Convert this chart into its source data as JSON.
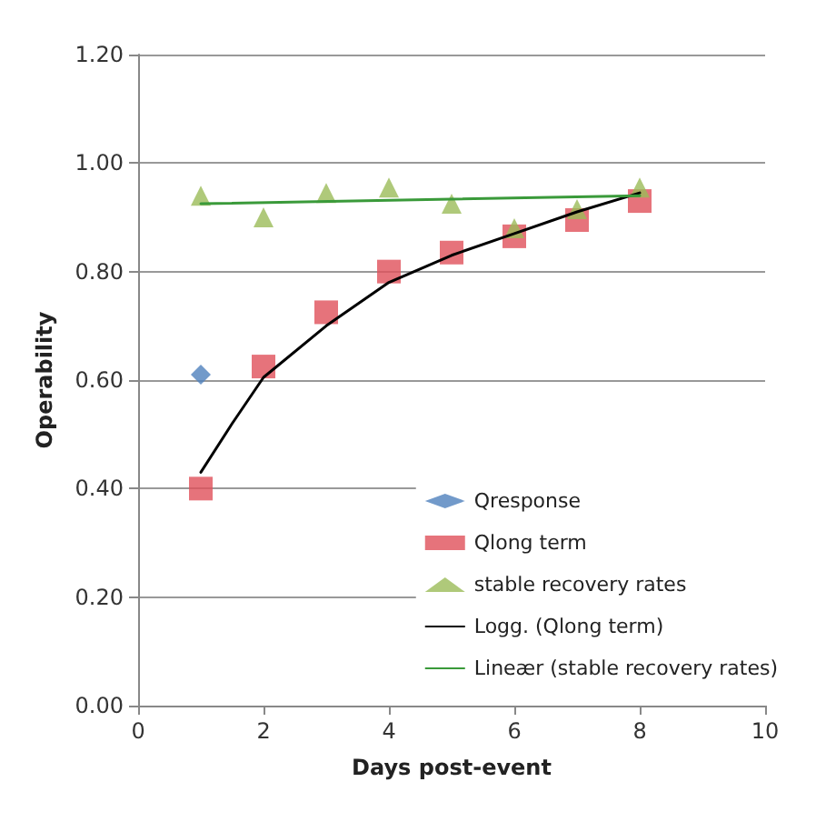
{
  "chart_data": {
    "type": "scatter",
    "xlabel": "Days post-event",
    "ylabel": "Operability",
    "xlim": [
      0,
      10
    ],
    "xticks": [
      0,
      2,
      4,
      6,
      8,
      10
    ],
    "ylim": [
      0,
      1.2
    ],
    "yticks": [
      {
        "value": 0,
        "label": "0.00"
      },
      {
        "value": 0.2,
        "label": "0.20"
      },
      {
        "value": 0.4,
        "label": "0.40"
      },
      {
        "value": 0.6,
        "label": "0.60"
      },
      {
        "value": 0.8,
        "label": "0.80"
      },
      {
        "value": 1,
        "label": "1.00"
      },
      {
        "value": 1.2,
        "label": "1.20"
      }
    ],
    "grid": "y",
    "legend": "bottom right",
    "series": [
      {
        "name": "Qresponse",
        "marker": "diamond",
        "color": "#4f81bd",
        "x": [
          1
        ],
        "values": [
          0.61
        ]
      },
      {
        "name": "Qlong term",
        "marker": "square",
        "color": "#e0505a",
        "x": [
          1,
          2,
          3,
          4,
          5,
          6,
          7,
          8
        ],
        "values": [
          0.4,
          0.625,
          0.725,
          0.8,
          0.835,
          0.865,
          0.895,
          0.93
        ]
      },
      {
        "name": "stable recovery rates",
        "marker": "triangle",
        "color": "#9bbb59",
        "x": [
          1,
          2,
          3,
          4,
          5,
          6,
          7,
          8
        ],
        "values": [
          0.94,
          0.9,
          0.945,
          0.955,
          0.925,
          0.88,
          0.915,
          0.955
        ]
      },
      {
        "name": "Logg. (Qlong term)",
        "type": "line",
        "marker": "none",
        "color": "#000000",
        "x": [
          1,
          1.5,
          2,
          3,
          4,
          5,
          6,
          7,
          8
        ],
        "values": [
          0.43,
          0.52,
          0.605,
          0.7,
          0.78,
          0.83,
          0.87,
          0.91,
          0.945
        ]
      },
      {
        "name": "Lineær (stable recovery rates)",
        "type": "line",
        "marker": "none",
        "color": "#3a9a3a",
        "x": [
          1,
          8
        ],
        "values": [
          0.925,
          0.94
        ]
      }
    ]
  }
}
